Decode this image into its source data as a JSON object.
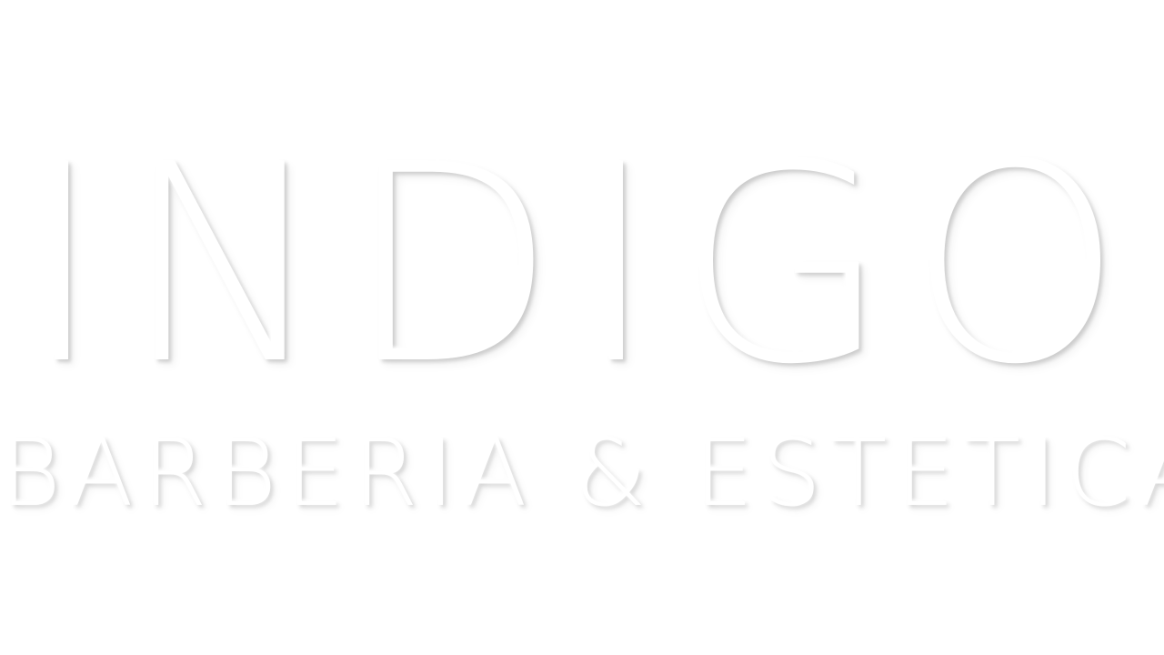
{
  "logo": {
    "title": "INDIGO",
    "subtitle": "BARBERIA & ESTETICA"
  },
  "colors": {
    "background": "#ffffff",
    "text": "#ffffff",
    "shadow": "#e6e6e6"
  }
}
